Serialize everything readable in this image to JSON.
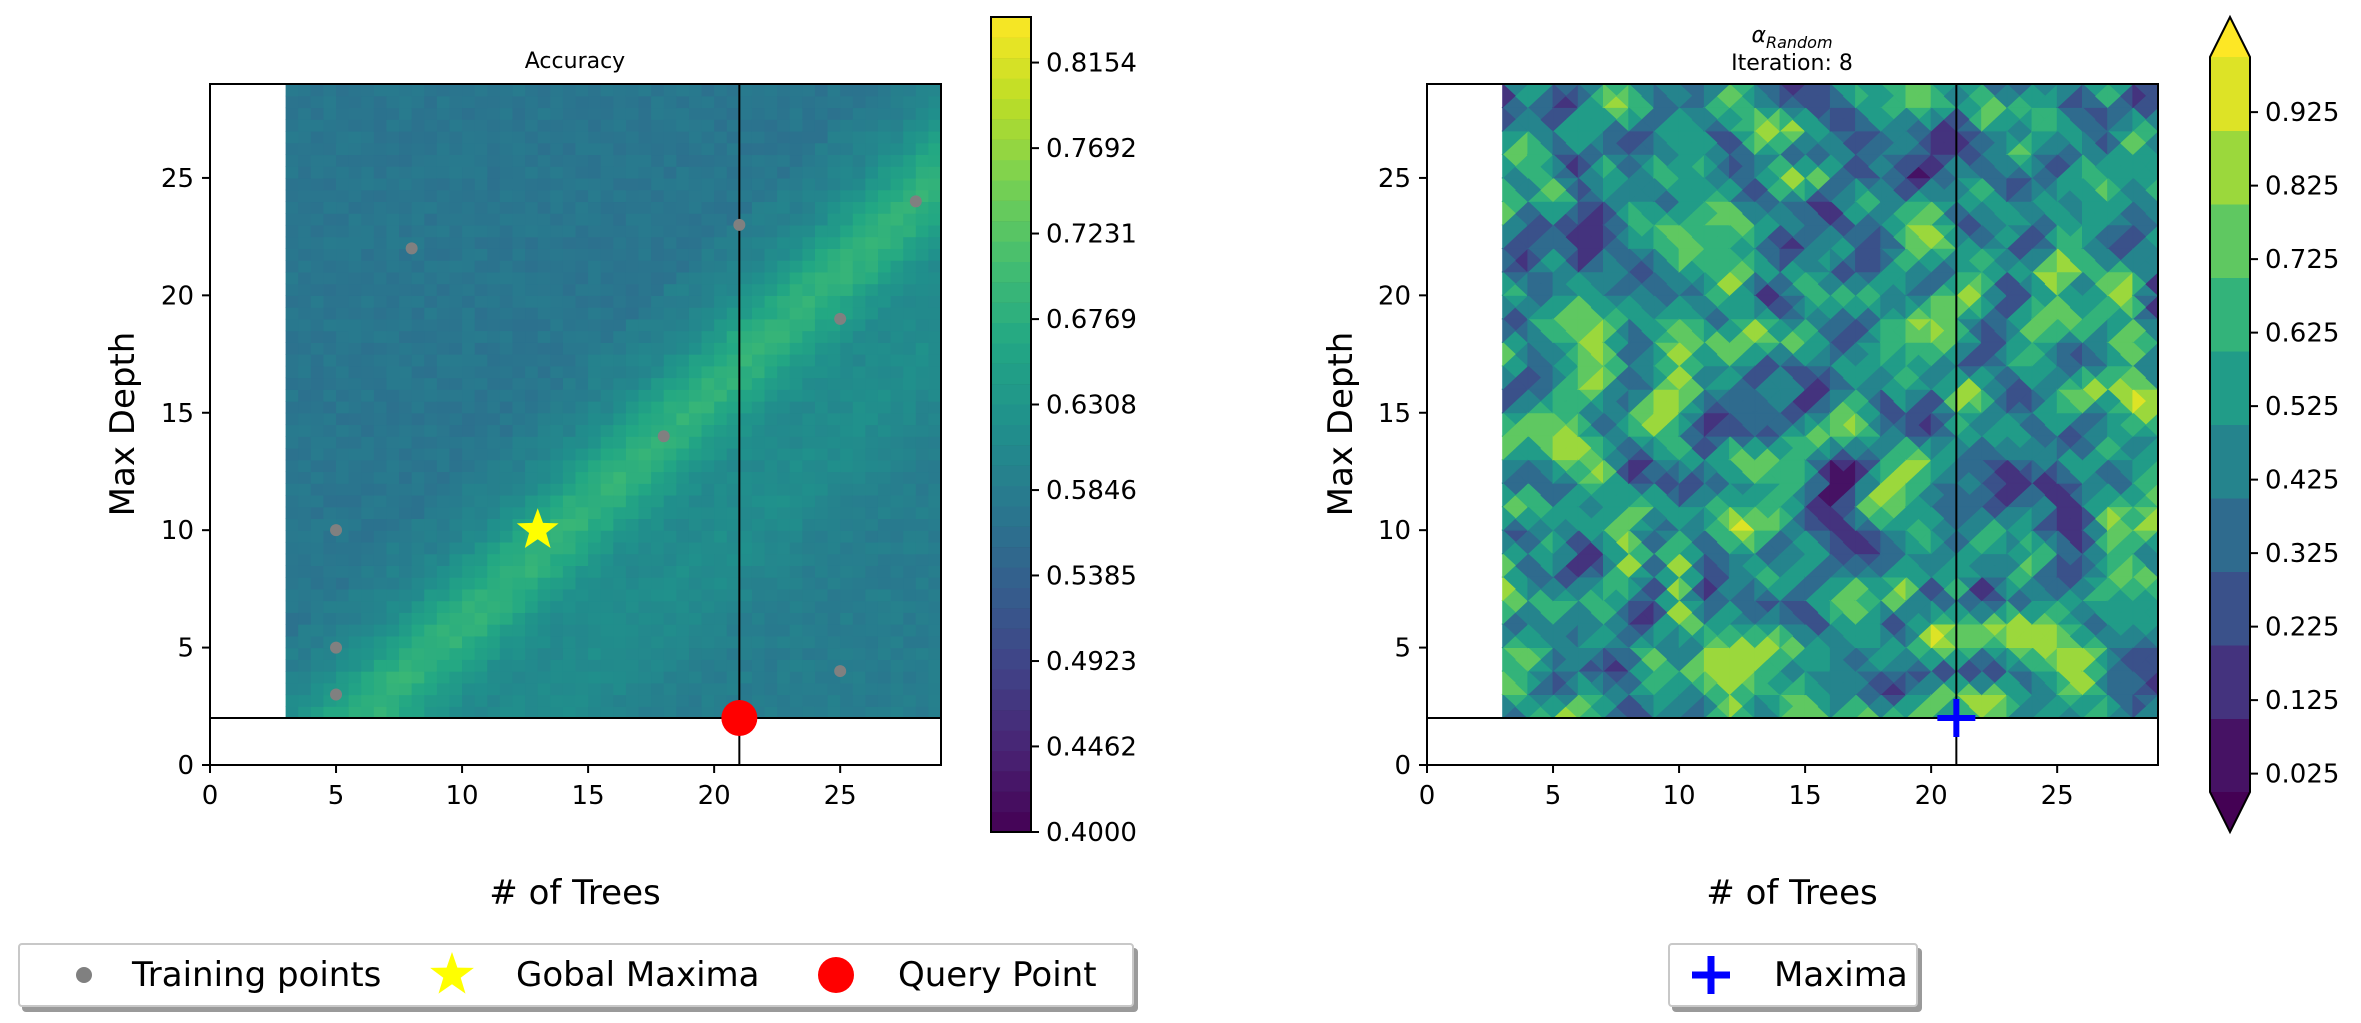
{
  "chart_data": [
    {
      "type": "heatmap",
      "title": "Accuracy",
      "xlabel": "# of Trees",
      "ylabel": "Max Depth",
      "xlim": [
        0,
        29
      ],
      "ylim": [
        0,
        29
      ],
      "xticks": [
        "0",
        "5",
        "10",
        "15",
        "20",
        "25"
      ],
      "yticks": [
        "0",
        "5",
        "10",
        "15",
        "20",
        "25"
      ],
      "field_extent": {
        "x": [
          3,
          29
        ],
        "y": [
          2,
          29
        ]
      },
      "vertical_line_x": 21,
      "horizontal_line_y": 2,
      "training_points": [
        [
          5,
          3
        ],
        [
          5,
          5
        ],
        [
          5,
          10
        ],
        [
          8,
          22
        ],
        [
          18,
          14
        ],
        [
          21,
          23
        ],
        [
          25,
          19
        ],
        [
          25,
          4
        ],
        [
          28,
          24
        ]
      ],
      "global_maxima": [
        13,
        10
      ],
      "query_point": [
        21,
        2
      ],
      "colorbar": {
        "min": 0.4,
        "max": 0.84,
        "ticks": [
          "0.4000",
          "0.4462",
          "0.4923",
          "0.5385",
          "0.5846",
          "0.6308",
          "0.6769",
          "0.7231",
          "0.7692",
          "0.8154"
        ],
        "colormap": "viridis",
        "extend": "none"
      },
      "colors": {
        "training": "#808080",
        "maxima": "#ffff00",
        "query": "#ff0000"
      }
    },
    {
      "type": "heatmap",
      "title_symbol": "α",
      "title_subscript": "Random",
      "subtitle": "Iteration: 8",
      "xlabel": "# of Trees",
      "ylabel": "Max Depth",
      "xlim": [
        0,
        29
      ],
      "ylim": [
        0,
        29
      ],
      "xticks": [
        "0",
        "5",
        "10",
        "15",
        "20",
        "25"
      ],
      "yticks": [
        "0",
        "5",
        "10",
        "15",
        "20",
        "25"
      ],
      "field_extent": {
        "x": [
          3,
          29
        ],
        "y": [
          2,
          29
        ]
      },
      "vertical_line_x": 21,
      "horizontal_line_y": 2,
      "maxima": [
        21,
        2
      ],
      "colorbar": {
        "min": 0.0,
        "max": 1.0,
        "ticks": [
          "0.025",
          "0.125",
          "0.225",
          "0.325",
          "0.425",
          "0.525",
          "0.625",
          "0.725",
          "0.825",
          "0.925"
        ],
        "colormap": "viridis",
        "extend": "both"
      },
      "colors": {
        "maxima": "#0000ff"
      }
    }
  ],
  "legend_left": {
    "items": [
      {
        "label": "Training points",
        "marker": "dot"
      },
      {
        "label": "Gobal Maxima",
        "marker": "star"
      },
      {
        "label": "Query Point",
        "marker": "circle"
      }
    ]
  },
  "legend_right": {
    "items": [
      {
        "label": "Maxima",
        "marker": "plus"
      }
    ]
  }
}
